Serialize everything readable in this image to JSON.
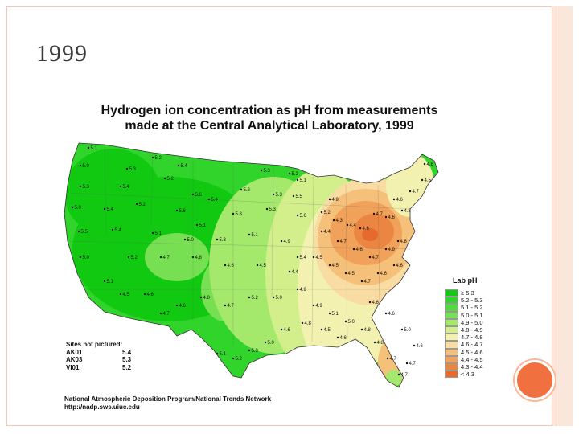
{
  "slide": {
    "title": "1999"
  },
  "map": {
    "title_line1": "Hydrogen ion concentration as pH from measurements",
    "title_line2": "made at the Central Analytical Laboratory, 1999",
    "legend_title": "Lab pH",
    "legend": [
      {
        "label": "≥ 5.3",
        "color": "#12c912"
      },
      {
        "label": "5.2 - 5.3",
        "color": "#31d42b"
      },
      {
        "label": "5.1 - 5.2",
        "color": "#52db3e"
      },
      {
        "label": "5.0 - 5.1",
        "color": "#76e052"
      },
      {
        "label": "4.9 - 5.0",
        "color": "#a4e86c"
      },
      {
        "label": "4.8 - 4.9",
        "color": "#d2ef8c"
      },
      {
        "label": "4.7 - 4.8",
        "color": "#f2f1b0"
      },
      {
        "label": "4.6 - 4.7",
        "color": "#f8dca2"
      },
      {
        "label": "4.5 - 4.6",
        "color": "#f5c07a"
      },
      {
        "label": "4.4 - 4.5",
        "color": "#f0a15a"
      },
      {
        "label": "4.3 - 4.4",
        "color": "#eb8642"
      },
      {
        "label": "< 4.3",
        "color": "#e6692e"
      }
    ],
    "sites_title": "Sites not pictured:",
    "sites": [
      {
        "id": "AK01",
        "ph": "5.4"
      },
      {
        "id": "AK03",
        "ph": "5.3"
      },
      {
        "id": "VI01",
        "ph": "5.2"
      }
    ],
    "credit_line1": "National Atmospheric Deposition Program/National Trends Network",
    "credit_line2": "http://nadp.sws.uiuc.edu",
    "station_labels": [
      "5.1",
      "5.0",
      "5.3",
      "5.2",
      "5.4",
      "5.3",
      "5.2",
      "5.1",
      "5.3",
      "5.4",
      "5.2",
      "5.6",
      "5.4",
      "5.2",
      "5.3",
      "5.5",
      "5.0",
      "5.4",
      "5.2",
      "5.6",
      "5.1",
      "5.8",
      "5.3",
      "5.6",
      "5.5",
      "5.4",
      "5.1",
      "5.0",
      "5.3",
      "5.1",
      "4.9",
      "5.4",
      "5.0",
      "5.2",
      "4.7",
      "4.8",
      "4.6",
      "4.5",
      "4.4",
      "4.4",
      "4.3",
      "4.4",
      "4.6",
      "4.7",
      "4.6",
      "4.8",
      "4.6",
      "4.7",
      "4.5",
      "4.8",
      "4.9",
      "5.2",
      "4.7",
      "4.6",
      "4.7",
      "4.9",
      "4.8",
      "4.6",
      "4.6",
      "4.7",
      "4.5",
      "4.5",
      "4.5",
      "4.9",
      "5.0",
      "5.2",
      "4.7",
      "4.8",
      "4.6",
      "4.7",
      "4.6",
      "4.5",
      "5.1",
      "4.9",
      "5.1",
      "5.0",
      "4.8",
      "4.8",
      "4.7",
      "4.7",
      "4.6",
      "4.5",
      "4.8",
      "4.6",
      "5.0",
      "5.3",
      "5.2",
      "5.1",
      "4.6",
      "4.6",
      "5.0",
      "4.6",
      "4.7"
    ]
  }
}
